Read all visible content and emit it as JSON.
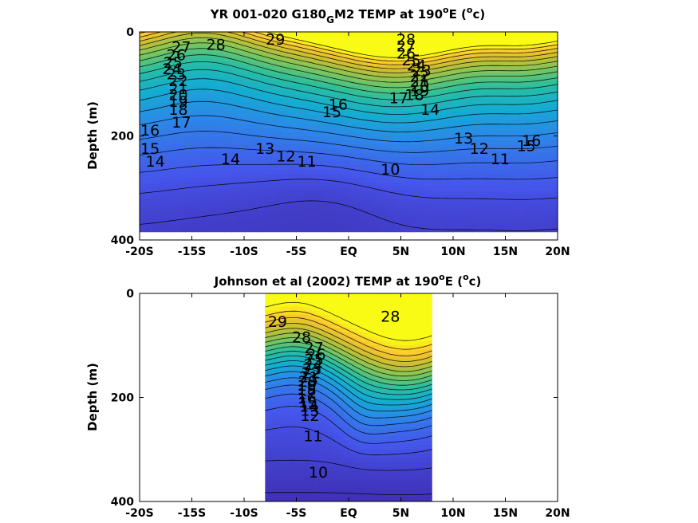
{
  "chart_data": [
    {
      "type": "heatmap",
      "title": "YR 001-020 G180_GM2 TEMP at 190°E (°c)",
      "title_parts": {
        "a": "YR 001-020 G180",
        "sub": "G",
        "b": "M2 TEMP at 190",
        "sup1": "o",
        "c": "E (",
        "sup2": "o",
        "d": "c)"
      },
      "xlabel": "",
      "ylabel": "Depth (m)",
      "xlim": [
        -20,
        20
      ],
      "ylim": [
        400,
        0
      ],
      "data_xrange": [
        -20,
        20
      ],
      "data_depth_max": 385,
      "xtick_values": [
        -20,
        -15,
        -10,
        -5,
        0,
        5,
        10,
        15,
        20
      ],
      "xtick_labels": [
        "-20S",
        "-15S",
        "-10S",
        "-5S",
        "EQ",
        "5N",
        "10N",
        "15N",
        "20N"
      ],
      "ytick_values": [
        0,
        200,
        400
      ],
      "ytick_labels": [
        "0",
        "200",
        "400"
      ],
      "colormap": "parula",
      "color_range": [
        9,
        30
      ],
      "contour_interval": 1,
      "contour_labels": [
        {
          "text": "29",
          "x": -7.0,
          "y": 15
        },
        {
          "text": "28",
          "x": -12.7,
          "y": 25
        },
        {
          "text": "27",
          "x": -16.0,
          "y": 30
        },
        {
          "text": "26",
          "x": -16.5,
          "y": 45
        },
        {
          "text": "25",
          "x": -16.8,
          "y": 60
        },
        {
          "text": "24",
          "x": -16.9,
          "y": 72
        },
        {
          "text": "23",
          "x": -16.5,
          "y": 82
        },
        {
          "text": "22",
          "x": -16.3,
          "y": 95
        },
        {
          "text": "21",
          "x": -16.3,
          "y": 110
        },
        {
          "text": "20",
          "x": -16.3,
          "y": 122
        },
        {
          "text": "19",
          "x": -16.3,
          "y": 135
        },
        {
          "text": "18",
          "x": -16.3,
          "y": 150
        },
        {
          "text": "17",
          "x": -16.0,
          "y": 175
        },
        {
          "text": "16",
          "x": -19.0,
          "y": 190
        },
        {
          "text": "15",
          "x": -19.0,
          "y": 225
        },
        {
          "text": "14",
          "x": -18.5,
          "y": 250
        },
        {
          "text": "14",
          "x": -11.3,
          "y": 245
        },
        {
          "text": "13",
          "x": -8.0,
          "y": 225
        },
        {
          "text": "12",
          "x": -6.0,
          "y": 240
        },
        {
          "text": "11",
          "x": -4.0,
          "y": 250
        },
        {
          "text": "10",
          "x": 4.0,
          "y": 265
        },
        {
          "text": "16",
          "x": -1.0,
          "y": 140
        },
        {
          "text": "15",
          "x": -1.6,
          "y": 155
        },
        {
          "text": "14",
          "x": 7.8,
          "y": 150
        },
        {
          "text": "13",
          "x": 11.0,
          "y": 205
        },
        {
          "text": "12",
          "x": 12.5,
          "y": 225
        },
        {
          "text": "11",
          "x": 14.5,
          "y": 245
        },
        {
          "text": "16",
          "x": 17.5,
          "y": 210
        },
        {
          "text": "15",
          "x": 17.0,
          "y": 220
        },
        {
          "text": "28",
          "x": 5.5,
          "y": 15
        },
        {
          "text": "27",
          "x": 5.5,
          "y": 28
        },
        {
          "text": "26",
          "x": 5.5,
          "y": 42
        },
        {
          "text": "25",
          "x": 6.0,
          "y": 55
        },
        {
          "text": "24",
          "x": 6.5,
          "y": 65
        },
        {
          "text": "23",
          "x": 7.0,
          "y": 75
        },
        {
          "text": "22",
          "x": 6.8,
          "y": 86
        },
        {
          "text": "21",
          "x": 6.8,
          "y": 96
        },
        {
          "text": "20",
          "x": 6.8,
          "y": 105
        },
        {
          "text": "19",
          "x": 6.8,
          "y": 114
        },
        {
          "text": "18",
          "x": 6.3,
          "y": 122
        },
        {
          "text": "17",
          "x": 4.8,
          "y": 128
        }
      ]
    },
    {
      "type": "heatmap",
      "title": "Johnson et al (2002) TEMP at 190°E (°c)",
      "title_parts": {
        "a": "Johnson et al (2002) TEMP at 190",
        "sup1": "o",
        "c": "E (",
        "sup2": "o",
        "d": "c)"
      },
      "xlabel": "",
      "ylabel": "Depth (m)",
      "xlim": [
        -20,
        20
      ],
      "ylim": [
        400,
        0
      ],
      "data_xrange": [
        -8,
        8
      ],
      "data_depth_max": 400,
      "xtick_values": [
        -20,
        -15,
        -10,
        -5,
        0,
        5,
        10,
        15,
        20
      ],
      "xtick_labels": [
        "-20S",
        "-15S",
        "-10S",
        "-5S",
        "EQ",
        "5N",
        "10N",
        "15N",
        "20N"
      ],
      "ytick_values": [
        0,
        200,
        400
      ],
      "ytick_labels": [
        "0",
        "200",
        "400"
      ],
      "colormap": "parula",
      "color_range": [
        9,
        30
      ],
      "contour_interval": 1,
      "contour_labels": [
        {
          "text": "29",
          "x": -6.8,
          "y": 55
        },
        {
          "text": "28",
          "x": -4.5,
          "y": 85
        },
        {
          "text": "27",
          "x": -3.3,
          "y": 105
        },
        {
          "text": "26",
          "x": -3.1,
          "y": 118
        },
        {
          "text": "25",
          "x": -3.3,
          "y": 128
        },
        {
          "text": "24",
          "x": -3.4,
          "y": 138
        },
        {
          "text": "23",
          "x": -3.5,
          "y": 146
        },
        {
          "text": "22",
          "x": -3.6,
          "y": 154
        },
        {
          "text": "21",
          "x": -3.8,
          "y": 162
        },
        {
          "text": "20",
          "x": -3.9,
          "y": 170
        },
        {
          "text": "19",
          "x": -4.0,
          "y": 178
        },
        {
          "text": "18",
          "x": -4.0,
          "y": 186
        },
        {
          "text": "17",
          "x": -4.0,
          "y": 194
        },
        {
          "text": "16",
          "x": -4.0,
          "y": 202
        },
        {
          "text": "15",
          "x": -3.9,
          "y": 210
        },
        {
          "text": "14",
          "x": -3.8,
          "y": 218
        },
        {
          "text": "13",
          "x": -3.7,
          "y": 226
        },
        {
          "text": "12",
          "x": -3.7,
          "y": 236
        },
        {
          "text": "11",
          "x": -3.4,
          "y": 275
        },
        {
          "text": "10",
          "x": -2.9,
          "y": 345
        },
        {
          "text": "28",
          "x": 4.0,
          "y": 45
        }
      ]
    }
  ]
}
